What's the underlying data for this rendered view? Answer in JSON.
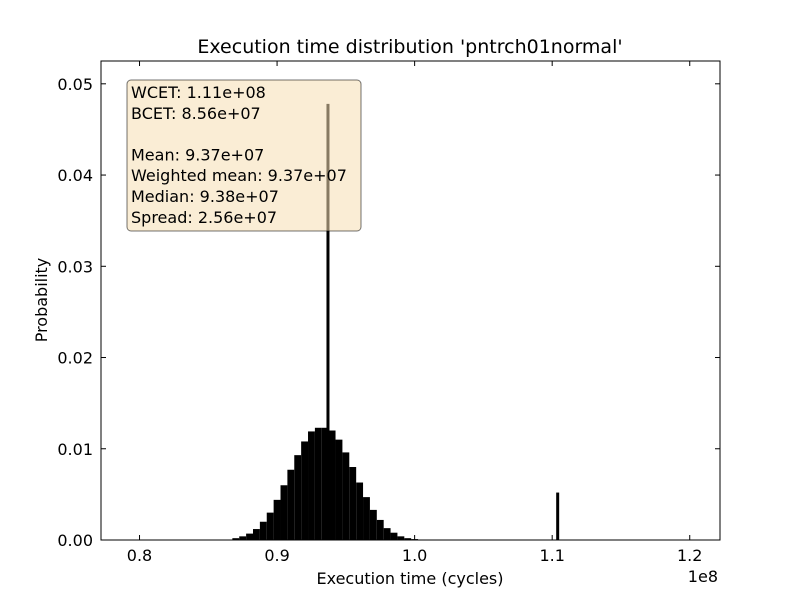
{
  "chart_data": {
    "type": "bar",
    "title": "Execution time distribution 'pntrch01normal'",
    "xlabel": "Execution time (cycles)",
    "ylabel": "Probability",
    "x_offset_label": "1e8",
    "xlim": [
      0.772,
      1.222
    ],
    "ylim": [
      0,
      0.0525
    ],
    "x_scale_factor": 100000000,
    "x_ticks": [
      0.8,
      0.9,
      1.0,
      1.1,
      1.2
    ],
    "x_tick_labels": [
      "0.8",
      "0.9",
      "1.0",
      "1.1",
      "1.2"
    ],
    "y_ticks": [
      0.0,
      0.01,
      0.02,
      0.03,
      0.04,
      0.05
    ],
    "y_tick_labels": [
      "0.00",
      "0.01",
      "0.02",
      "0.03",
      "0.04",
      "0.05"
    ],
    "grid": false,
    "bar_color": "#000000",
    "main_distribution": {
      "x": [
        0.87,
        0.875,
        0.88,
        0.885,
        0.89,
        0.895,
        0.9,
        0.905,
        0.91,
        0.915,
        0.92,
        0.925,
        0.93,
        0.935,
        0.94,
        0.945,
        0.95,
        0.955,
        0.96,
        0.965,
        0.97,
        0.975,
        0.98,
        0.985,
        0.99,
        0.995,
        1.0
      ],
      "y": [
        0.0002,
        0.0004,
        0.0007,
        0.0012,
        0.002,
        0.003,
        0.0044,
        0.006,
        0.0077,
        0.0093,
        0.0108,
        0.0119,
        0.0123,
        0.0123,
        0.012,
        0.011,
        0.0096,
        0.008,
        0.0063,
        0.0047,
        0.0033,
        0.0022,
        0.0013,
        0.0008,
        0.0004,
        0.0002,
        0.0001
      ]
    },
    "spikes": [
      {
        "x": 0.937,
        "y": 0.0478
      },
      {
        "x": 1.104,
        "y": 0.0052
      }
    ],
    "legend_box": {
      "placement": "top-left",
      "background": "#f5deb3",
      "lines": [
        "WCET: 1.11e+08",
        "BCET: 8.56e+07",
        "",
        "Mean: 9.37e+07",
        "Weighted mean: 9.37e+07",
        "Median: 9.38e+07",
        "Spread: 2.56e+07"
      ]
    }
  }
}
